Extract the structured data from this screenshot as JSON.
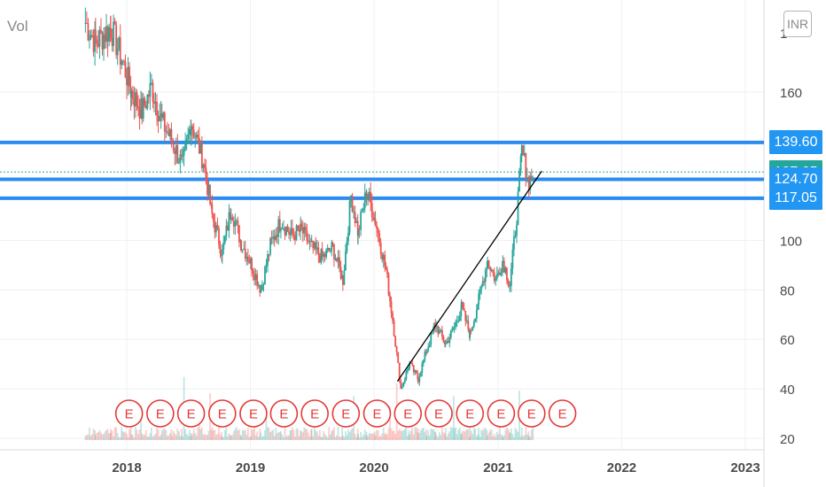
{
  "header": {
    "volume_label": "Vol",
    "currency_button": "INR"
  },
  "colors": {
    "up": "#26a69a",
    "down": "#ef5350",
    "level_line": "#2a8bf2",
    "trendline": "#000000",
    "last_price_tag": "#26a69a",
    "level_tag": "#2196f3",
    "earnings_marker": "#e53935"
  },
  "chart_data": {
    "type": "candlestick",
    "title": "",
    "xlabel": "",
    "ylabel": "",
    "x_range": [
      "2017-06",
      "2023-03"
    ],
    "y_range": [
      20,
      190
    ],
    "y_ticks": [
      20,
      40,
      60,
      80,
      100,
      160
    ],
    "y_tick_partial_top": "1",
    "x_ticks": [
      "2018",
      "2019",
      "2020",
      "2021",
      "2022",
      "2023"
    ],
    "grid": true,
    "price_path": [
      {
        "date": "2017-09-01",
        "price": 188
      },
      {
        "date": "2017-10-01",
        "price": 180
      },
      {
        "date": "2017-11-15",
        "price": 186
      },
      {
        "date": "2017-12-20",
        "price": 172
      },
      {
        "date": "2018-01-15",
        "price": 160
      },
      {
        "date": "2018-02-15",
        "price": 152
      },
      {
        "date": "2018-03-15",
        "price": 162
      },
      {
        "date": "2018-04-15",
        "price": 148
      },
      {
        "date": "2018-05-15",
        "price": 140
      },
      {
        "date": "2018-06-15",
        "price": 130
      },
      {
        "date": "2018-07-10",
        "price": 148
      },
      {
        "date": "2018-08-15",
        "price": 132
      },
      {
        "date": "2018-09-10",
        "price": 110
      },
      {
        "date": "2018-10-10",
        "price": 95
      },
      {
        "date": "2018-11-05",
        "price": 113
      },
      {
        "date": "2018-12-05",
        "price": 99
      },
      {
        "date": "2019-01-05",
        "price": 90
      },
      {
        "date": "2019-02-01",
        "price": 80
      },
      {
        "date": "2019-03-01",
        "price": 98
      },
      {
        "date": "2019-04-01",
        "price": 108
      },
      {
        "date": "2019-05-01",
        "price": 102
      },
      {
        "date": "2019-06-01",
        "price": 104
      },
      {
        "date": "2019-07-01",
        "price": 97
      },
      {
        "date": "2019-08-01",
        "price": 93
      },
      {
        "date": "2019-09-01",
        "price": 97
      },
      {
        "date": "2019-10-01",
        "price": 84
      },
      {
        "date": "2019-10-25",
        "price": 118
      },
      {
        "date": "2019-11-15",
        "price": 103
      },
      {
        "date": "2019-12-10",
        "price": 120
      },
      {
        "date": "2020-01-05",
        "price": 108
      },
      {
        "date": "2020-02-05",
        "price": 88
      },
      {
        "date": "2020-02-25",
        "price": 68
      },
      {
        "date": "2020-03-20",
        "price": 40
      },
      {
        "date": "2020-04-15",
        "price": 50
      },
      {
        "date": "2020-05-10",
        "price": 44
      },
      {
        "date": "2020-06-05",
        "price": 56
      },
      {
        "date": "2020-06-30",
        "price": 66
      },
      {
        "date": "2020-07-30",
        "price": 58
      },
      {
        "date": "2020-08-25",
        "price": 65
      },
      {
        "date": "2020-09-15",
        "price": 73
      },
      {
        "date": "2020-10-10",
        "price": 62
      },
      {
        "date": "2020-11-05",
        "price": 76
      },
      {
        "date": "2020-12-01",
        "price": 92
      },
      {
        "date": "2020-12-25",
        "price": 84
      },
      {
        "date": "2021-01-15",
        "price": 92
      },
      {
        "date": "2021-02-05",
        "price": 82
      },
      {
        "date": "2021-02-25",
        "price": 110
      },
      {
        "date": "2021-03-12",
        "price": 136
      },
      {
        "date": "2021-04-02",
        "price": 124
      },
      {
        "date": "2021-04-18",
        "price": 127.65
      }
    ],
    "horizontal_levels": [
      139.6,
      124.7,
      117.05
    ],
    "last_price": 127.65,
    "price_tags": [
      "139.60",
      "127.65",
      "124.70",
      "117.05"
    ],
    "trendline": {
      "start": {
        "date": "2020-03-10",
        "price": 43
      },
      "end": {
        "date": "2021-05-10",
        "price": 128
      }
    },
    "earnings_markers": {
      "label": "E",
      "dates": [
        "2018-01-08",
        "2018-04-10",
        "2018-07-10",
        "2018-10-10",
        "2019-01-10",
        "2019-04-10",
        "2019-07-10",
        "2019-10-10",
        "2020-01-10",
        "2020-04-10",
        "2020-07-10",
        "2020-10-10",
        "2021-01-10",
        "2021-04-10",
        "2021-07-10"
      ]
    }
  }
}
